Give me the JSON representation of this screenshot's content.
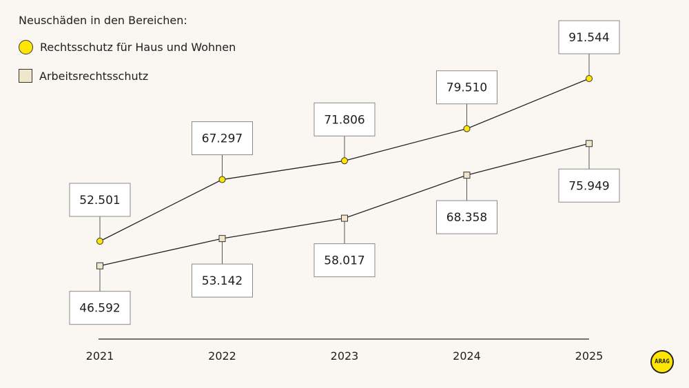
{
  "chart_data": {
    "type": "line",
    "title": "Neuschäden in den Bereichen:",
    "categories": [
      "2021",
      "2022",
      "2023",
      "2024",
      "2025"
    ],
    "series": [
      {
        "name": "Rechtsschutz für Haus und Wohnen",
        "marker": "circle",
        "color": "#ffe600",
        "values": [
          52501,
          67297,
          71806,
          79510,
          91544
        ],
        "labels": [
          "52.501",
          "67.297",
          "71.806",
          "79.510",
          "91.544"
        ],
        "label_position": "above"
      },
      {
        "name": "Arbeitsrechtsschutz",
        "marker": "square",
        "color": "#efe6cc",
        "values": [
          46592,
          53142,
          58017,
          68358,
          75949
        ],
        "labels": [
          "46.592",
          "53.142",
          "58.017",
          "68.358",
          "75.949"
        ],
        "label_position": "below"
      }
    ],
    "legend": "top-left",
    "grid": false
  },
  "logo": "ARAG"
}
